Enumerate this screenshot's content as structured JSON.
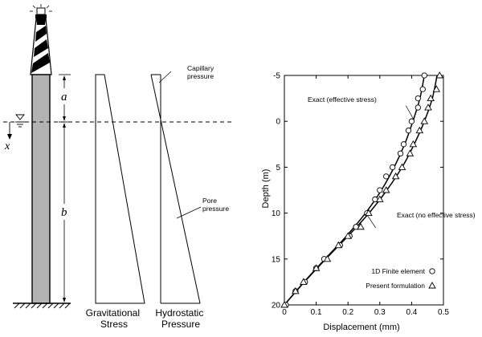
{
  "schematic": {
    "dimension_labels": {
      "top": "a",
      "bottom": "b",
      "depth": "x"
    },
    "panel_labels": {
      "gravitational": [
        "Gravitational",
        "Stress"
      ],
      "hydrostatic": [
        "Hydrostatic",
        "Pressure"
      ]
    },
    "annotations": {
      "capillary": [
        "Capillary",
        "pressure"
      ],
      "pore": [
        "Pore",
        "pressure"
      ]
    }
  },
  "chart_data": {
    "type": "scatter",
    "xlabel": "Displacement (mm)",
    "ylabel": "Depth (m)",
    "xlim": [
      0,
      0.5
    ],
    "ylim": [
      -5,
      20
    ],
    "y_inverted": true,
    "x_ticks": [
      0,
      0.1,
      0.2,
      0.3,
      0.4,
      0.5
    ],
    "x_tick_labels": [
      "0",
      "0.1",
      "0.2",
      "0.3",
      "0.4",
      "0.5"
    ],
    "y_ticks": [
      -5,
      0,
      5,
      10,
      15,
      20
    ],
    "y_tick_labels": [
      "-5",
      "0",
      "5",
      "10",
      "15",
      "20"
    ],
    "grid": false,
    "legend_position": "bottom-right",
    "series": [
      {
        "name": "Exact (effective stress)",
        "kind": "line",
        "points": [
          [
            0.44,
            -5
          ],
          [
            0.426,
            -2.5
          ],
          [
            0.404,
            0
          ],
          [
            0.378,
            2.5
          ],
          [
            0.345,
            5
          ],
          [
            0.305,
            7.5
          ],
          [
            0.255,
            10
          ],
          [
            0.195,
            12.5
          ],
          [
            0.128,
            15
          ],
          [
            0.062,
            17.5
          ],
          [
            0,
            20
          ]
        ]
      },
      {
        "name": "Exact (no effective stress)",
        "kind": "line",
        "points": [
          [
            0.48,
            -5
          ],
          [
            0.465,
            -2.5
          ],
          [
            0.44,
            0
          ],
          [
            0.408,
            2.5
          ],
          [
            0.37,
            5
          ],
          [
            0.322,
            7.5
          ],
          [
            0.266,
            10
          ],
          [
            0.2,
            12.5
          ],
          [
            0.13,
            15
          ],
          [
            0.063,
            17.5
          ],
          [
            0,
            20
          ]
        ]
      },
      {
        "name": "1D Finite element",
        "kind": "marker",
        "marker": "circle",
        "points": [
          [
            0.44,
            -5
          ],
          [
            0.435,
            -3.5
          ],
          [
            0.42,
            -2.5
          ],
          [
            0.42,
            -1.5
          ],
          [
            0.4,
            0
          ],
          [
            0.39,
            1
          ],
          [
            0.375,
            2.5
          ],
          [
            0.365,
            3.5
          ],
          [
            0.34,
            5
          ],
          [
            0.32,
            6
          ],
          [
            0.3,
            7.5
          ],
          [
            0.285,
            8.5
          ],
          [
            0.26,
            10
          ],
          [
            0.225,
            11.5
          ],
          [
            0.205,
            12.5
          ],
          [
            0.175,
            13.5
          ],
          [
            0.125,
            15
          ],
          [
            0.1,
            16
          ],
          [
            0.065,
            17.5
          ],
          [
            0.035,
            18.5
          ],
          [
            0.005,
            20
          ]
        ]
      },
      {
        "name": "Present formulation",
        "kind": "marker",
        "marker": "triangle",
        "points": [
          [
            0.488,
            -5
          ],
          [
            0.478,
            -3.5
          ],
          [
            0.46,
            -2.5
          ],
          [
            0.452,
            -1.5
          ],
          [
            0.44,
            0
          ],
          [
            0.425,
            1
          ],
          [
            0.405,
            2.5
          ],
          [
            0.395,
            3.5
          ],
          [
            0.37,
            5
          ],
          [
            0.35,
            6
          ],
          [
            0.32,
            7.5
          ],
          [
            0.3,
            8.5
          ],
          [
            0.265,
            10
          ],
          [
            0.24,
            11.5
          ],
          [
            0.2,
            12.5
          ],
          [
            0.17,
            13.5
          ],
          [
            0.135,
            15
          ],
          [
            0.1,
            16
          ],
          [
            0.06,
            17.5
          ],
          [
            0.035,
            18.5
          ],
          [
            0,
            20
          ]
        ]
      }
    ],
    "curve_labels": {
      "effective": "Exact (effective stress)",
      "no_effective": "Exact (no effective stress)"
    },
    "legend": [
      {
        "label": "1D Finite element",
        "marker": "circle"
      },
      {
        "label": "Present formulation",
        "marker": "triangle"
      }
    ]
  }
}
